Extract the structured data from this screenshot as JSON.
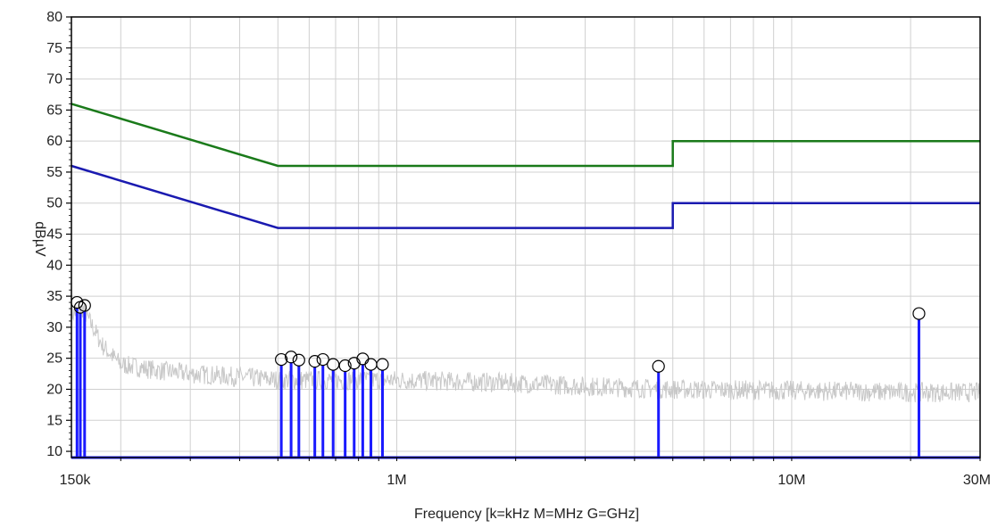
{
  "chart_data": {
    "type": "line",
    "title": "",
    "xlabel": "Frequency [k=kHz M=MHz G=GHz]",
    "ylabel": "dBµV",
    "x_scale": "log",
    "xlim": [
      150000,
      30000000
    ],
    "ylim": [
      10,
      80
    ],
    "grid": true,
    "y_ticks": [
      10,
      15,
      20,
      25,
      30,
      35,
      40,
      45,
      50,
      55,
      60,
      65,
      70,
      75,
      80
    ],
    "x_tick_labels": [
      {
        "label": "150k",
        "value": 150000
      },
      {
        "label": "1M",
        "value": 1000000
      },
      {
        "label": "10M",
        "value": 10000000
      },
      {
        "label": "30M",
        "value": 30000000
      }
    ],
    "x_gridlines": [
      200000,
      300000,
      400000,
      500000,
      600000,
      700000,
      800000,
      900000,
      1000000,
      2000000,
      3000000,
      4000000,
      5000000,
      6000000,
      7000000,
      8000000,
      9000000,
      10000000,
      20000000,
      30000000
    ],
    "series": [
      {
        "kind": "limit",
        "color": "#1a7a1a",
        "points": [
          [
            150000,
            66
          ],
          [
            500000,
            56
          ],
          [
            5000000,
            56
          ],
          [
            5000000,
            60
          ],
          [
            30000000,
            60
          ]
        ]
      },
      {
        "kind": "limit",
        "color": "#1a1ab0",
        "points": [
          [
            150000,
            56
          ],
          [
            500000,
            46
          ],
          [
            5000000,
            46
          ],
          [
            5000000,
            50
          ],
          [
            30000000,
            50
          ]
        ]
      },
      {
        "kind": "trace",
        "color": "#c8c8c8",
        "points": [
          [
            150000,
            32
          ],
          [
            160000,
            33
          ],
          [
            170000,
            30
          ],
          [
            180000,
            27
          ],
          [
            200000,
            24
          ],
          [
            250000,
            23
          ],
          [
            300000,
            22.5
          ],
          [
            400000,
            22
          ],
          [
            500000,
            21.5
          ],
          [
            700000,
            21.5
          ],
          [
            1000000,
            21.5
          ],
          [
            2000000,
            21
          ],
          [
            3000000,
            20.5
          ],
          [
            5000000,
            20
          ],
          [
            10000000,
            19.8
          ],
          [
            20000000,
            19.5
          ],
          [
            30000000,
            19.5
          ]
        ]
      }
    ],
    "markers": {
      "color": "#1a1aff",
      "baseline": 9,
      "points": [
        {
          "x": 155000,
          "y": 34
        },
        {
          "x": 158000,
          "y": 33.2
        },
        {
          "x": 162000,
          "y": 33.5
        },
        {
          "x": 510000,
          "y": 24.8
        },
        {
          "x": 540000,
          "y": 25.2
        },
        {
          "x": 565000,
          "y": 24.7
        },
        {
          "x": 620000,
          "y": 24.5
        },
        {
          "x": 650000,
          "y": 24.8
        },
        {
          "x": 690000,
          "y": 24.0
        },
        {
          "x": 740000,
          "y": 23.8
        },
        {
          "x": 780000,
          "y": 24.2
        },
        {
          "x": 820000,
          "y": 24.9
        },
        {
          "x": 860000,
          "y": 24.0
        },
        {
          "x": 920000,
          "y": 24.0
        },
        {
          "x": 4600000,
          "y": 23.7
        },
        {
          "x": 21000000,
          "y": 32.2
        }
      ]
    }
  }
}
